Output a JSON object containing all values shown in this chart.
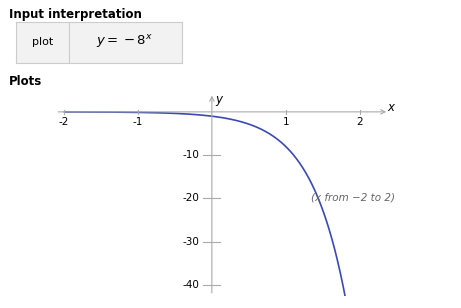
{
  "title_section": "Input interpretation",
  "plot_label": "plot",
  "section2": "Plots",
  "x_min": -2,
  "x_max": 2,
  "y_min": -42,
  "y_max": 4,
  "x_ticks": [
    -2,
    -1,
    1,
    2
  ],
  "y_ticks": [
    -10,
    -20,
    -30,
    -40
  ],
  "annotation": "(x from −2 to 2)",
  "curve_color": "#3a4ab0",
  "background_color": "#ffffff",
  "axis_color": "#aaaaaa",
  "text_color": "#000000",
  "annotation_color": "#666666",
  "box_bg": "#f2f2f2",
  "box_border": "#cccccc",
  "divider_color": "#cccccc"
}
